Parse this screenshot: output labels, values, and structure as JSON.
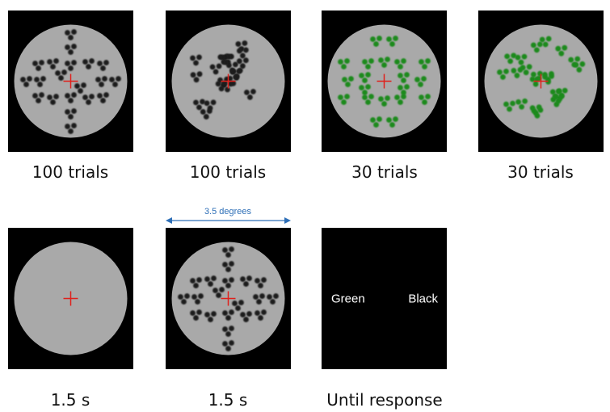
{
  "top_row": {
    "captions": [
      "100 trials",
      "100 trials",
      "30 trials",
      "30 trials"
    ]
  },
  "bottom_row": {
    "captions": [
      "1.5 s",
      "1.5 s",
      "Until response"
    ],
    "response_options": [
      "Green",
      "Black"
    ],
    "size_annotation": "3.5 degrees"
  }
}
